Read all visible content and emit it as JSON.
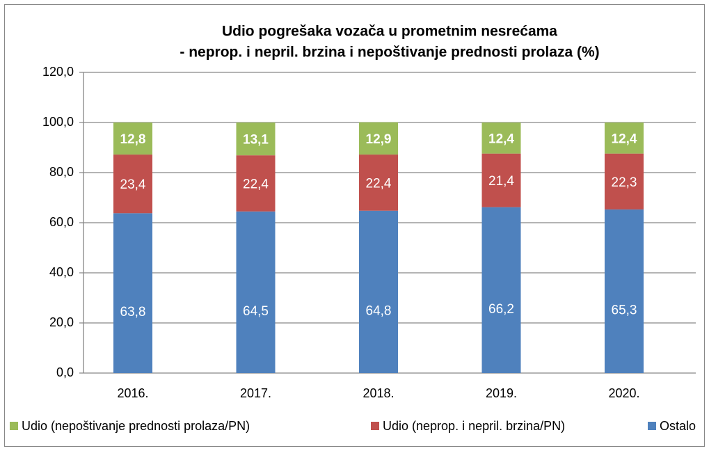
{
  "chart_data": {
    "type": "stacked_bar",
    "title": "Udio pogrešaka vozača u prometnim nesrećama",
    "subtitle": "- neprop. i nepril. brzina i nepoštivanje prednosti prolaza (%)",
    "categories": [
      "2016.",
      "2017.",
      "2018.",
      "2019.",
      "2020."
    ],
    "series": [
      {
        "name": "Ostalo",
        "color": "#4f81bd",
        "values": [
          63.8,
          64.5,
          64.8,
          66.2,
          65.3
        ],
        "value_labels": [
          "63,8",
          "64,5",
          "64,8",
          "66,2",
          "65,3"
        ]
      },
      {
        "name": "Udio (neprop. i nepril. brzina/PN)",
        "color": "#c0504d",
        "values": [
          23.4,
          22.4,
          22.4,
          21.4,
          22.3
        ],
        "value_labels": [
          "23,4",
          "22,4",
          "22,4",
          "21,4",
          "22,3"
        ]
      },
      {
        "name": "Udio (nepoštivanje prednosti prolaza/PN)",
        "color": "#9bbb59",
        "values": [
          12.8,
          13.1,
          12.9,
          12.4,
          12.4
        ],
        "value_labels": [
          "12,8",
          "13,1",
          "12,9",
          "12,4",
          "12,4"
        ]
      }
    ],
    "ylim": [
      0,
      120
    ],
    "yticks": [
      {
        "value": 0,
        "label": "0,0"
      },
      {
        "value": 20,
        "label": "20,0"
      },
      {
        "value": 40,
        "label": "40,0"
      },
      {
        "value": 60,
        "label": "60,0"
      },
      {
        "value": 80,
        "label": "80,0"
      },
      {
        "value": 100,
        "label": "100,0"
      },
      {
        "value": 120,
        "label": "120,0"
      }
    ],
    "grid": true
  }
}
